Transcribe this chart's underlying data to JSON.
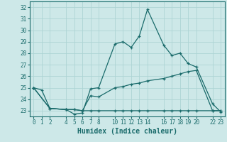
{
  "xlabel": "Humidex (Indice chaleur)",
  "background_color": "#cde8e8",
  "grid_color": "#add4d4",
  "line_color": "#1a6b6b",
  "xlim": [
    -0.5,
    23.5
  ],
  "ylim": [
    22.5,
    32.5
  ],
  "yticks": [
    23,
    24,
    25,
    26,
    27,
    28,
    29,
    30,
    31,
    32
  ],
  "xticks": [
    0,
    1,
    2,
    4,
    5,
    6,
    7,
    8,
    10,
    11,
    12,
    13,
    14,
    16,
    17,
    18,
    19,
    20,
    22,
    23
  ],
  "line1_x": [
    0,
    1,
    2,
    4,
    5,
    6,
    7,
    8,
    10,
    11,
    12,
    13,
    14,
    16,
    17,
    18,
    19,
    20,
    22,
    23
  ],
  "line1_y": [
    25.0,
    24.8,
    23.2,
    23.1,
    22.7,
    22.8,
    24.9,
    25.0,
    28.8,
    29.0,
    28.5,
    29.5,
    31.8,
    28.7,
    27.8,
    28.0,
    27.1,
    26.8,
    23.6,
    22.9
  ],
  "line2_x": [
    0,
    2,
    4,
    5,
    6,
    7,
    8,
    10,
    11,
    12,
    13,
    14,
    16,
    17,
    18,
    19,
    20,
    22,
    23
  ],
  "line2_y": [
    25.0,
    23.2,
    23.1,
    23.1,
    23.0,
    24.3,
    24.2,
    25.0,
    25.1,
    25.3,
    25.4,
    25.6,
    25.8,
    26.0,
    26.2,
    26.4,
    26.5,
    23.0,
    23.0
  ],
  "line3_x": [
    0,
    2,
    4,
    5,
    6,
    7,
    8,
    10,
    11,
    12,
    13,
    14,
    16,
    17,
    18,
    19,
    20,
    22,
    23
  ],
  "line3_y": [
    25.0,
    23.2,
    23.1,
    23.1,
    23.0,
    23.0,
    23.0,
    23.0,
    23.0,
    23.0,
    23.0,
    23.0,
    23.0,
    23.0,
    23.0,
    23.0,
    23.0,
    23.0,
    23.0
  ],
  "font_size_tick": 5.5,
  "font_size_label": 7
}
